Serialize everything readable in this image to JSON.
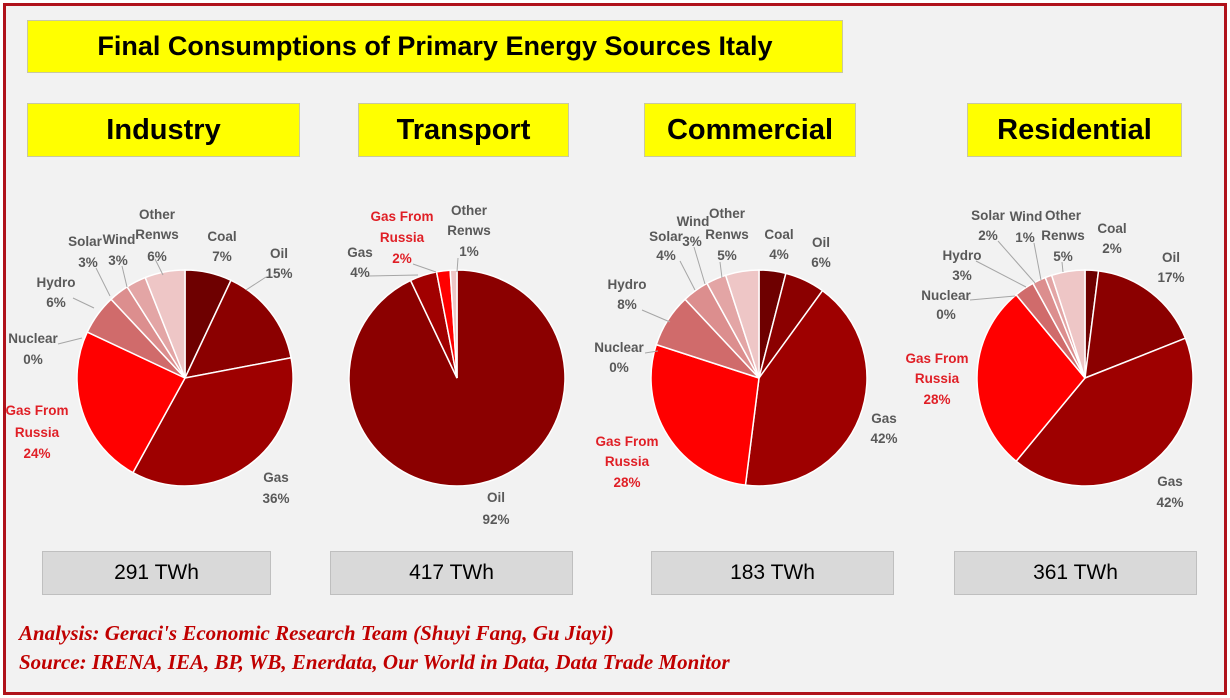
{
  "title": "Final Consumptions of Primary Energy Sources Italy",
  "credits": {
    "analysis": "Analysis: Geraci's Economic Research Team (Shuyi Fang, Gu Jiayi)",
    "source": "Source: IRENA, IEA, BP, WB, Enerdata, Our World in Data, Data Trade Monitor"
  },
  "colors": {
    "Coal": "#6e0000",
    "Oil": "#8b0000",
    "Gas": "#9e0000",
    "Gas From Russia": "#ff0000",
    "Nuclear": "#c04545",
    "Hydro": "#d06b6b",
    "Solar": "#dc8e8e",
    "Wind": "#e3a5a5",
    "Other Renws": "#eec6c6",
    "Transport Gas": "#a10000"
  },
  "chart_data": [
    {
      "type": "pie",
      "title": "Industry",
      "total": "291 TWh",
      "slices": [
        {
          "name": "Coal",
          "value": 7,
          "label": "7%"
        },
        {
          "name": "Oil",
          "value": 15,
          "label": "15%"
        },
        {
          "name": "Gas",
          "value": 36,
          "label": "36%"
        },
        {
          "name": "Gas From Russia",
          "value": 24,
          "label": "24%"
        },
        {
          "name": "Nuclear",
          "value": 0,
          "label": "0%"
        },
        {
          "name": "Hydro",
          "value": 6,
          "label": "6%"
        },
        {
          "name": "Solar",
          "value": 3,
          "label": "3%"
        },
        {
          "name": "Wind",
          "value": 3,
          "label": "3%"
        },
        {
          "name": "Other Renws",
          "value": 6,
          "label": "6%"
        }
      ]
    },
    {
      "type": "pie",
      "title": "Transport",
      "total": "417 TWh",
      "slices": [
        {
          "name": "Oil",
          "value": 92,
          "label": "92%"
        },
        {
          "name": "Gas",
          "value": 4,
          "label": "4%"
        },
        {
          "name": "Gas From Russia",
          "value": 2,
          "label": "2%"
        },
        {
          "name": "Other Renws",
          "value": 1,
          "label": "1%"
        }
      ]
    },
    {
      "type": "pie",
      "title": "Commercial",
      "total": "183 TWh",
      "slices": [
        {
          "name": "Coal",
          "value": 4,
          "label": "4%"
        },
        {
          "name": "Oil",
          "value": 6,
          "label": "6%"
        },
        {
          "name": "Gas",
          "value": 42,
          "label": "42%"
        },
        {
          "name": "Gas From Russia",
          "value": 28,
          "label": "28%"
        },
        {
          "name": "Nuclear",
          "value": 0,
          "label": "0%"
        },
        {
          "name": "Hydro",
          "value": 8,
          "label": "8%"
        },
        {
          "name": "Solar",
          "value": 4,
          "label": "4%"
        },
        {
          "name": "Wind",
          "value": 3,
          "label": "3%"
        },
        {
          "name": "Other Renws",
          "value": 5,
          "label": "5%"
        }
      ]
    },
    {
      "type": "pie",
      "title": "Residential",
      "total": "361 TWh",
      "slices": [
        {
          "name": "Coal",
          "value": 2,
          "label": "2%"
        },
        {
          "name": "Oil",
          "value": 17,
          "label": "17%"
        },
        {
          "name": "Gas",
          "value": 42,
          "label": "42%"
        },
        {
          "name": "Gas From Russia",
          "value": 28,
          "label": "28%"
        },
        {
          "name": "Nuclear",
          "value": 0,
          "label": "0%"
        },
        {
          "name": "Hydro",
          "value": 3,
          "label": "3%"
        },
        {
          "name": "Solar",
          "value": 2,
          "label": "2%"
        },
        {
          "name": "Wind",
          "value": 1,
          "label": "1%"
        },
        {
          "name": "Other Renws",
          "value": 5,
          "label": "5%"
        }
      ]
    }
  ]
}
